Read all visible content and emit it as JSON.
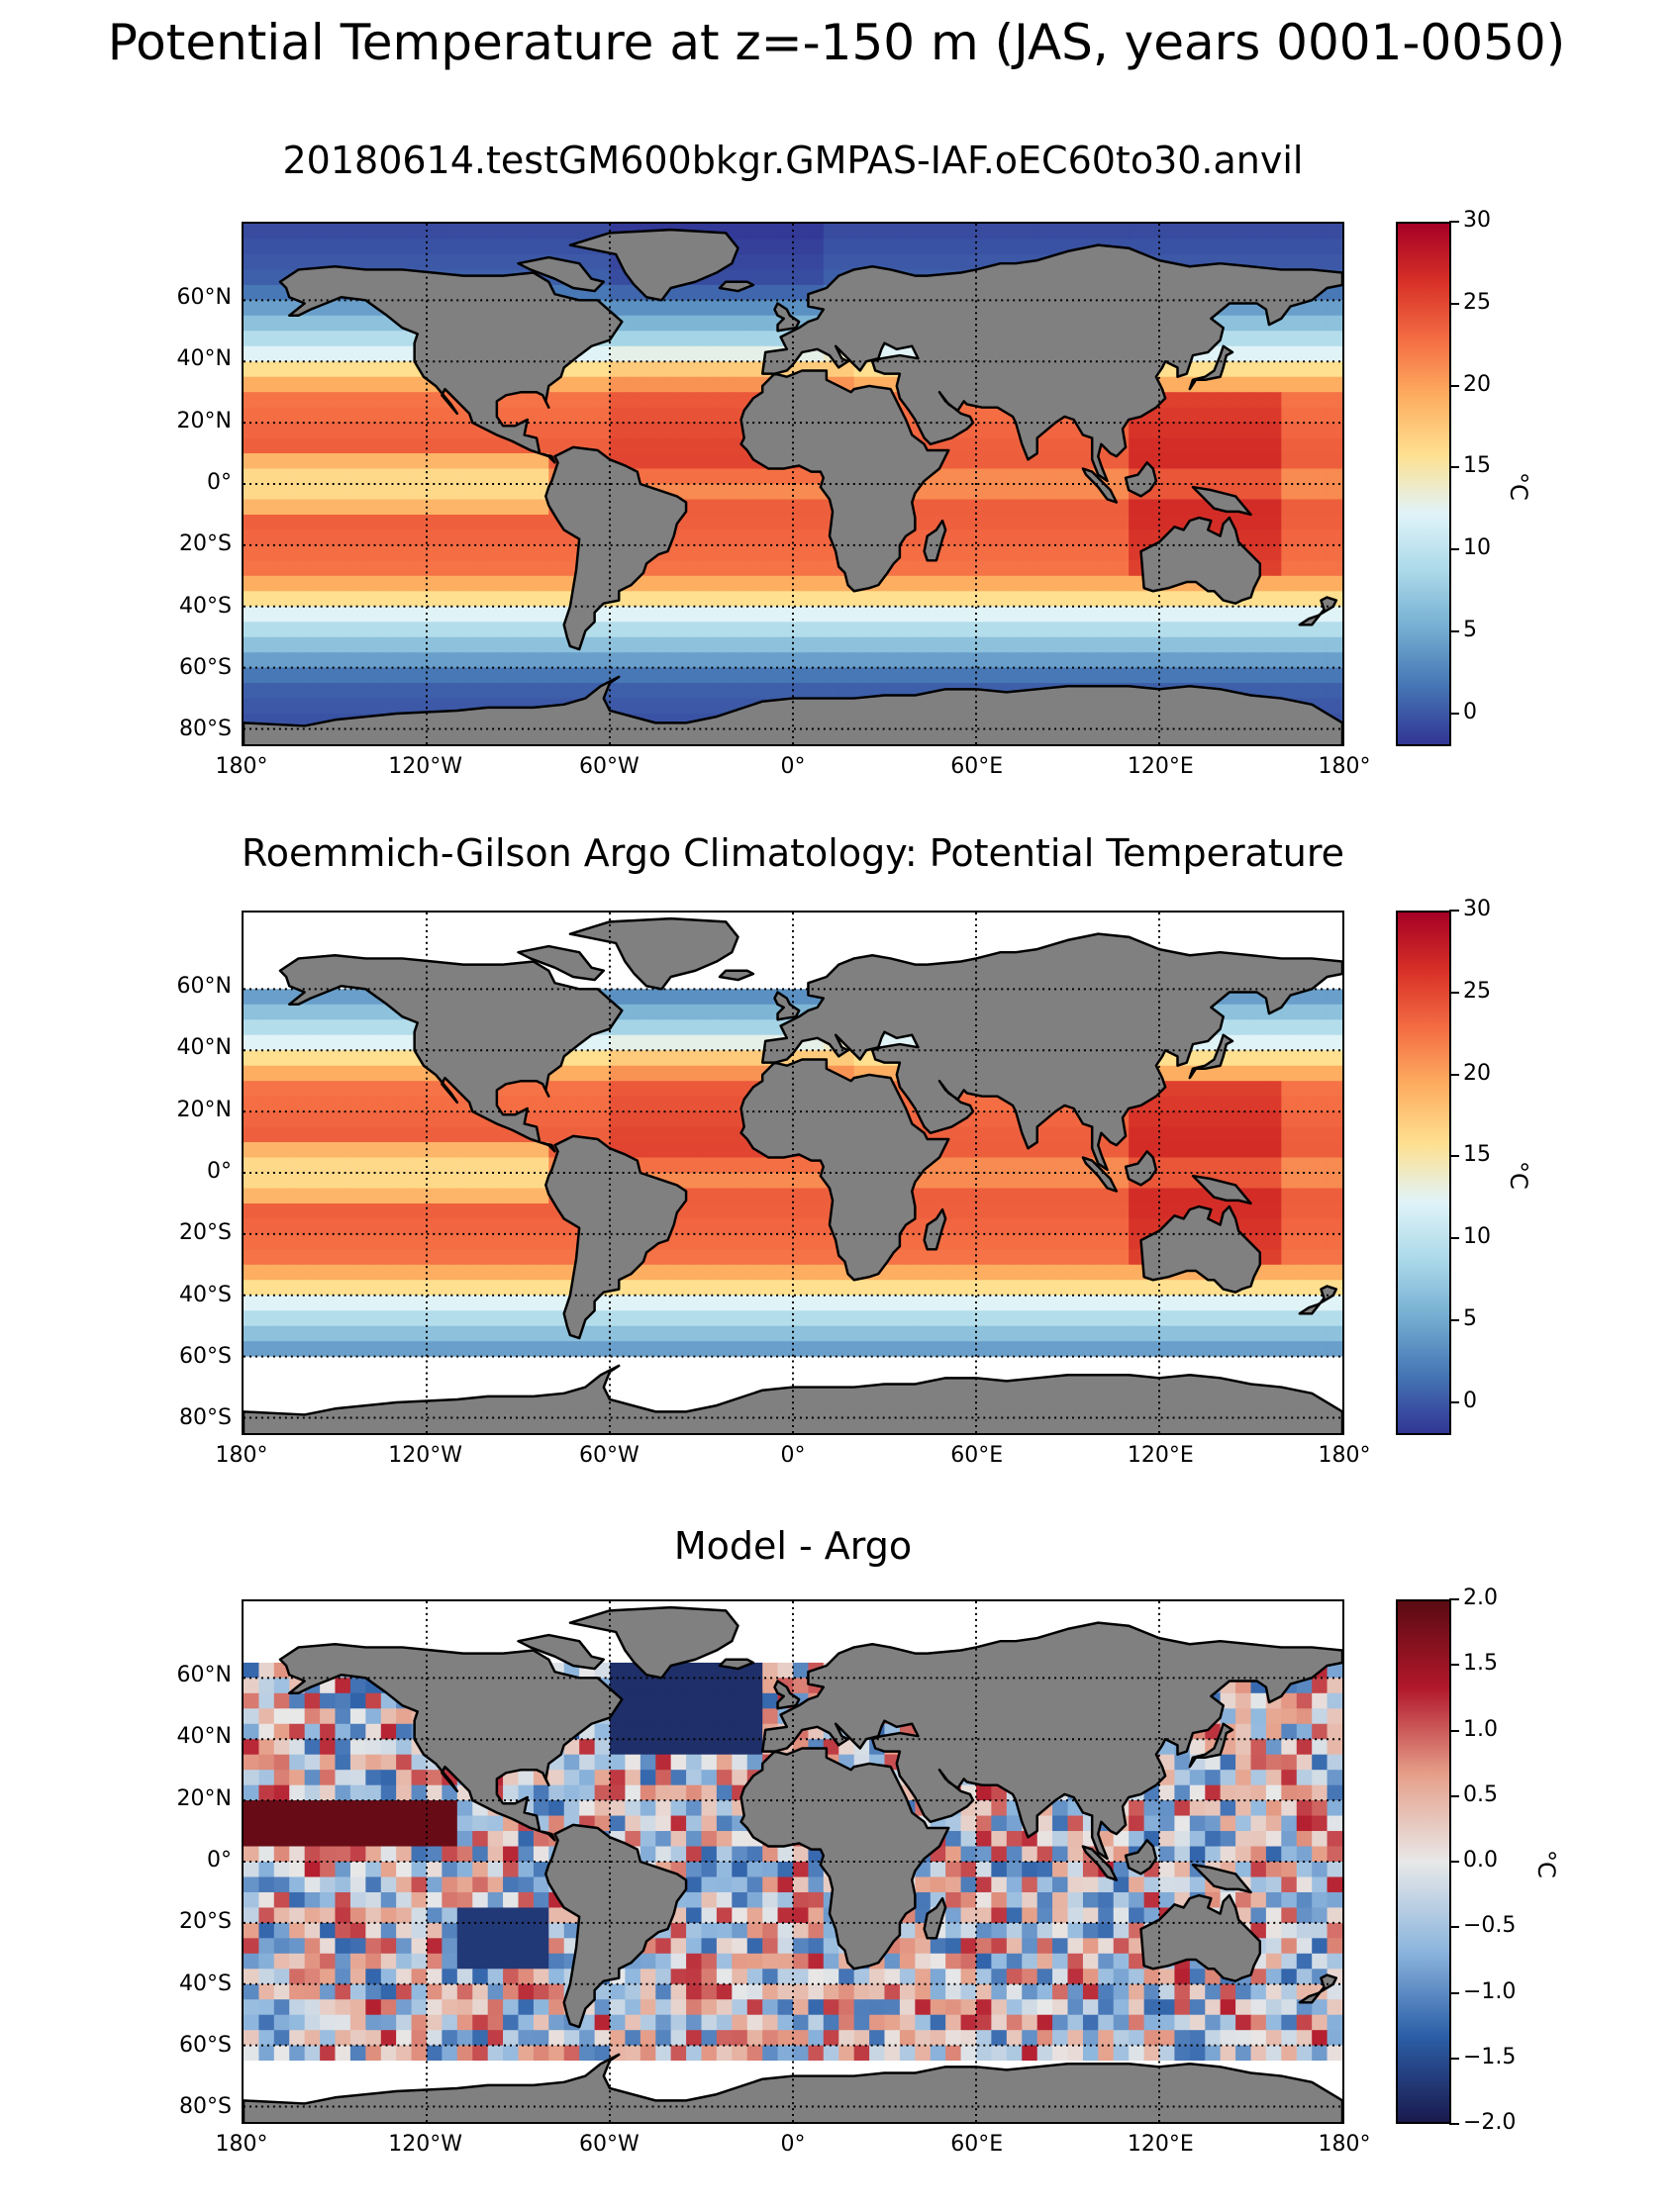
{
  "figure": {
    "suptitle": "Potential Temperature at z=-150 m (JAS, years 0001-0050)"
  },
  "axes_labels": {
    "lat_ticks": [
      "60°N",
      "40°N",
      "20°N",
      "0°",
      "20°S",
      "40°S",
      "60°S",
      "80°S"
    ],
    "lon_ticks": [
      "180°",
      "120°W",
      "60°W",
      "0°",
      "60°E",
      "120°E",
      "180°"
    ]
  },
  "panels": [
    {
      "title": "20180614.testGM600bkgr.GMPAS-IAF.oEC60to30.anvil",
      "colorbar": {
        "unit": "°C",
        "ticks": [
          "30",
          "25",
          "20",
          "15",
          "10",
          "5",
          "0"
        ],
        "range": [
          -2,
          30
        ]
      }
    },
    {
      "title": "Roemmich-Gilson Argo Climatology: Potential Temperature",
      "colorbar": {
        "unit": "°C",
        "ticks": [
          "30",
          "25",
          "20",
          "15",
          "10",
          "5",
          "0"
        ],
        "range": [
          -2,
          30
        ]
      }
    },
    {
      "title": "Model - Argo",
      "colorbar": {
        "unit": "°C",
        "ticks": [
          "2.0",
          "1.5",
          "1.0",
          "0.5",
          "0.0",
          "−0.5",
          "−1.0",
          "−1.5",
          "−2.0"
        ],
        "range": [
          -2,
          2
        ]
      }
    }
  ],
  "colors": {
    "land": "#808080",
    "missing": "#ffffff",
    "temperature_colormap": [
      "#313695",
      "#4575b4",
      "#74add1",
      "#abd9e9",
      "#e0f3f8",
      "#fee090",
      "#fdae61",
      "#f46d43",
      "#d73027",
      "#a50026"
    ],
    "difference_colormap": [
      "#1a1a4e",
      "#2c5fa8",
      "#8fb7de",
      "#e8e8e8",
      "#e6a08a",
      "#b2182b",
      "#5a0a12"
    ]
  },
  "chart_data": [
    {
      "type": "heatmap",
      "title": "20180614.testGM600bkgr.GMPAS-IAF.oEC60to30.anvil",
      "xlim": [
        -180,
        180
      ],
      "ylim": [
        -85,
        85
      ],
      "grid": true,
      "zlim": [
        -2,
        30
      ],
      "zlabel": "°C"
    },
    {
      "type": "heatmap",
      "title": "Roemmich-Gilson Argo Climatology: Potential Temperature",
      "xlim": [
        -180,
        180
      ],
      "ylim": [
        -85,
        85
      ],
      "grid": true,
      "zlim": [
        -2,
        30
      ],
      "zlabel": "°C"
    },
    {
      "type": "heatmap",
      "title": "Model - Argo",
      "xlim": [
        -180,
        180
      ],
      "ylim": [
        -85,
        85
      ],
      "grid": true,
      "zlim": [
        -2,
        2
      ],
      "zlabel": "°C"
    }
  ]
}
